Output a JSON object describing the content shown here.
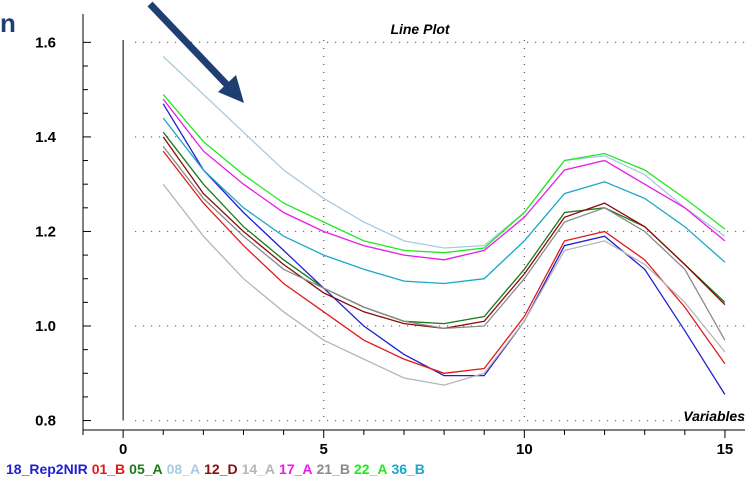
{
  "chart_data": {
    "type": "line",
    "title": "Line Plot",
    "xlabel": "Variables",
    "ylabel": "",
    "xlim": [
      -1,
      15.5
    ],
    "ylim": [
      0.78,
      1.66
    ],
    "x_ticks": [
      0,
      5,
      10,
      15
    ],
    "x_tick_labels": [
      "0",
      "5",
      "10",
      "15"
    ],
    "y_ticks": [
      0.8,
      1.0,
      1.2,
      1.4,
      1.6
    ],
    "y_tick_labels": [
      "0.8",
      "1.0",
      "1.2",
      "1.4",
      "1.6"
    ],
    "grid": "dotted",
    "legend_position": "bottom",
    "x": [
      1,
      2,
      3,
      4,
      5,
      6,
      7,
      8,
      9,
      10,
      11,
      12,
      13,
      14,
      15
    ],
    "series": [
      {
        "name": "18_Rep2NIR",
        "color": "#1f1fd0",
        "values": [
          1.47,
          1.33,
          1.24,
          1.16,
          1.08,
          1.0,
          0.94,
          0.895,
          0.895,
          1.01,
          1.17,
          1.19,
          1.12,
          0.99,
          0.855
        ]
      },
      {
        "name": "01_B",
        "color": "#e01a1a",
        "values": [
          1.37,
          1.26,
          1.17,
          1.09,
          1.03,
          0.97,
          0.93,
          0.9,
          0.91,
          1.02,
          1.18,
          1.2,
          1.14,
          1.04,
          0.92
        ]
      },
      {
        "name": "05_A",
        "color": "#1a7a1a",
        "values": [
          1.41,
          1.3,
          1.21,
          1.14,
          1.08,
          1.04,
          1.01,
          1.005,
          1.02,
          1.12,
          1.24,
          1.25,
          1.21,
          1.13,
          1.05
        ]
      },
      {
        "name": "08_A",
        "color": "#a9cbe0",
        "values": [
          1.57,
          1.49,
          1.41,
          1.33,
          1.27,
          1.22,
          1.18,
          1.165,
          1.17,
          1.24,
          1.35,
          1.36,
          1.32,
          1.25,
          1.19
        ]
      },
      {
        "name": "12_D",
        "color": "#8b0a0a",
        "values": [
          1.4,
          1.28,
          1.2,
          1.13,
          1.07,
          1.03,
          1.005,
          0.995,
          1.01,
          1.11,
          1.23,
          1.26,
          1.21,
          1.13,
          1.045
        ]
      },
      {
        "name": "14_A",
        "color": "#b6b6b6",
        "values": [
          1.3,
          1.19,
          1.1,
          1.03,
          0.97,
          0.93,
          0.89,
          0.875,
          0.9,
          1.01,
          1.16,
          1.18,
          1.13,
          1.05,
          0.945
        ]
      },
      {
        "name": "17_A",
        "color": "#e81ce8",
        "values": [
          1.48,
          1.37,
          1.3,
          1.24,
          1.2,
          1.17,
          1.15,
          1.14,
          1.16,
          1.23,
          1.33,
          1.35,
          1.3,
          1.25,
          1.18
        ]
      },
      {
        "name": "21_B",
        "color": "#8a8a8a",
        "values": [
          1.38,
          1.27,
          1.19,
          1.12,
          1.08,
          1.04,
          1.01,
          0.995,
          1.0,
          1.1,
          1.22,
          1.25,
          1.2,
          1.12,
          0.97
        ]
      },
      {
        "name": "22_A",
        "color": "#22e822",
        "values": [
          1.49,
          1.39,
          1.32,
          1.26,
          1.22,
          1.18,
          1.16,
          1.155,
          1.165,
          1.24,
          1.35,
          1.365,
          1.33,
          1.27,
          1.205
        ]
      },
      {
        "name": "36_B",
        "color": "#1aa6c8",
        "values": [
          1.44,
          1.33,
          1.25,
          1.19,
          1.15,
          1.12,
          1.095,
          1.09,
          1.1,
          1.18,
          1.28,
          1.305,
          1.27,
          1.21,
          1.135
        ]
      }
    ]
  },
  "legend": {
    "items": [
      {
        "label": "18_Rep2NIR",
        "color": "#1f1fd0"
      },
      {
        "label": "01_B",
        "color": "#e01a1a"
      },
      {
        "label": "05_A",
        "color": "#1a7a1a"
      },
      {
        "label": "08_A",
        "color": "#a9cbe0"
      },
      {
        "label": "12_D",
        "color": "#8b0a0a"
      },
      {
        "label": "14_A",
        "color": "#b6b6b6"
      },
      {
        "label": "17_A",
        "color": "#e81ce8"
      },
      {
        "label": "21_B",
        "color": "#8a8a8a"
      },
      {
        "label": "22_A",
        "color": "#22e822"
      },
      {
        "label": "36_B",
        "color": "#1aa6c8"
      }
    ]
  },
  "annotation": {
    "arrow_color": "#1f3f73",
    "partial_glyph": "n"
  }
}
